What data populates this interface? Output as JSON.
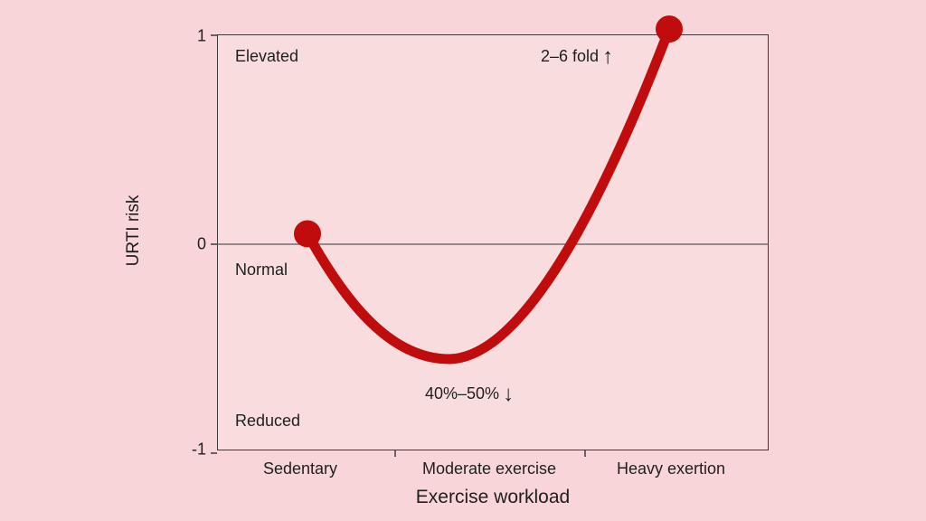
{
  "colors": {
    "background": "#f7d5d8",
    "plot_background": "#f9dcde",
    "curve": "#c00c0c",
    "axis": "#3a3a3a",
    "zero_line": "#5a5a5a",
    "text": "#1f1f1f"
  },
  "chart": {
    "ylabel": "URTI risk",
    "xlabel": "Exercise workload",
    "yticks": [
      "1",
      "0",
      "-1"
    ],
    "regions": {
      "elevated": "Elevated",
      "normal": "Normal",
      "reduced": "Reduced"
    },
    "annotations": {
      "peak_text": "2–6 fold",
      "peak_arrow": "↑",
      "trough_text": "40%–50%",
      "trough_arrow": "↓"
    }
  },
  "chart_data": {
    "type": "line",
    "title": "",
    "xlabel": "Exercise workload",
    "ylabel": "URTI risk",
    "categories": [
      "Sedentary",
      "Moderate exercise",
      "Heavy exertion"
    ],
    "values": [
      0.05,
      -0.55,
      1.03
    ],
    "ylim": [
      -1,
      1
    ],
    "yticks": [
      -1,
      0,
      1
    ],
    "grid": false,
    "legend": "none",
    "zero_line": true,
    "region_labels": [
      {
        "label": "Elevated",
        "y_range": [
          0,
          1
        ]
      },
      {
        "label": "Normal",
        "y_range": [
          0,
          0
        ]
      },
      {
        "label": "Reduced",
        "y_range": [
          -1,
          0
        ]
      }
    ],
    "annotations": [
      {
        "text": "2–6 fold ↑",
        "attached_to": "Heavy exertion",
        "meaning": "risk increased 2–6 fold"
      },
      {
        "text": "40%–50% ↓",
        "attached_to": "Moderate exercise",
        "meaning": "risk reduced 40%–50%"
      }
    ],
    "endpoint_markers": [
      "Sedentary",
      "Heavy exertion"
    ]
  }
}
